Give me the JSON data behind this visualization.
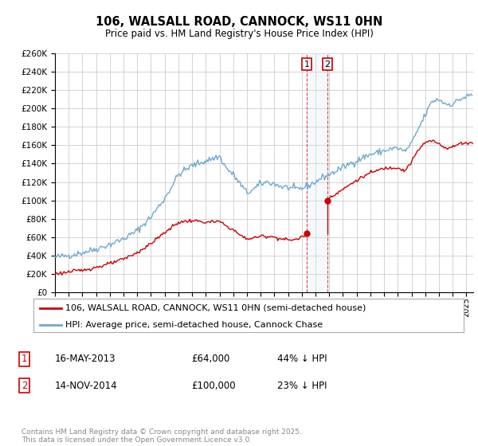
{
  "title": "106, WALSALL ROAD, CANNOCK, WS11 0HN",
  "subtitle": "Price paid vs. HM Land Registry's House Price Index (HPI)",
  "ylim": [
    0,
    260000
  ],
  "yticks": [
    0,
    20000,
    40000,
    60000,
    80000,
    100000,
    120000,
    140000,
    160000,
    180000,
    200000,
    220000,
    240000,
    260000
  ],
  "ytick_labels": [
    "£0",
    "£20K",
    "£40K",
    "£60K",
    "£80K",
    "£100K",
    "£120K",
    "£140K",
    "£160K",
    "£180K",
    "£200K",
    "£220K",
    "£240K",
    "£260K"
  ],
  "hpi_color": "#6fa8d0",
  "price_color": "#cc0000",
  "vline_color": "#cc0000",
  "span_color": "#dce9f5",
  "background_color": "#ffffff",
  "grid_color": "#cccccc",
  "t1_x": 2013.37,
  "t1_y": 64000,
  "t2_x": 2014.87,
  "t2_y": 100000,
  "transaction1": {
    "date": "16-MAY-2013",
    "price": 64000,
    "pct": "44% ↓ HPI"
  },
  "transaction2": {
    "date": "14-NOV-2014",
    "price": 100000,
    "pct": "23% ↓ HPI"
  },
  "legend_entry1": "106, WALSALL ROAD, CANNOCK, WS11 0HN (semi-detached house)",
  "legend_entry2": "HPI: Average price, semi-detached house, Cannock Chase",
  "footer": "Contains HM Land Registry data © Crown copyright and database right 2025.\nThis data is licensed under the Open Government Licence v3.0.",
  "xlim_start": 1995.0,
  "xlim_end": 2025.5
}
